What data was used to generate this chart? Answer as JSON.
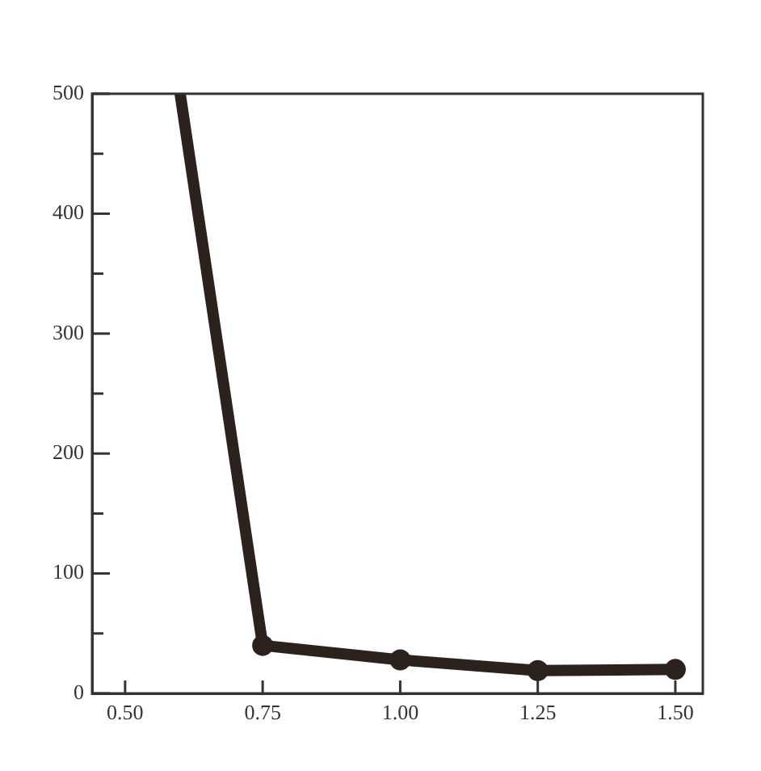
{
  "chart_data": {
    "type": "line",
    "x": [
      0.6,
      0.75,
      1.0,
      1.25,
      1.5
    ],
    "values": [
      500,
      40,
      28,
      19,
      20
    ],
    "color": "#2b221e",
    "xlim": [
      0.44,
      1.55
    ],
    "ylim": [
      0,
      500
    ],
    "xticks": [
      {
        "value": 0.5,
        "label": "0.50"
      },
      {
        "value": 0.75,
        "label": "0.75"
      },
      {
        "value": 1.0,
        "label": "1.00"
      },
      {
        "value": 1.25,
        "label": "1.25"
      },
      {
        "value": 1.5,
        "label": "1.50"
      }
    ],
    "yticks": [
      0,
      {
        "value": 50,
        "label": null
      },
      100,
      {
        "value": 150,
        "label": null
      },
      200,
      {
        "value": 250,
        "label": null
      },
      300,
      {
        "value": 350,
        "label": null
      },
      400,
      {
        "value": 450,
        "label": null
      },
      500
    ],
    "marker": "circle",
    "line_style": "solid",
    "grid": false,
    "legend": false
  }
}
